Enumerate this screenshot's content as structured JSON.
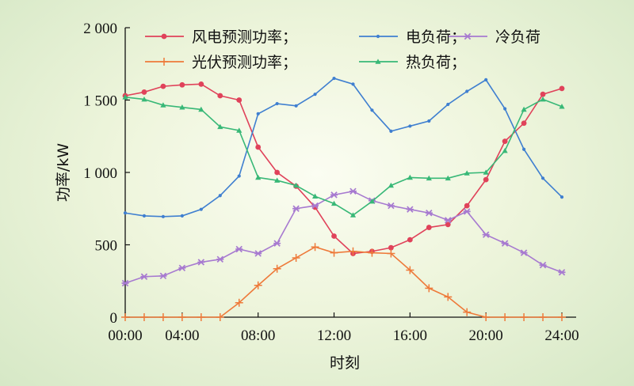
{
  "chart_data": {
    "type": "line",
    "xlabel": "时刻",
    "ylabel": "功率/kW",
    "xlim": [
      1,
      24
    ],
    "ylim": [
      0,
      2000
    ],
    "x_tick_values": [
      1,
      4,
      8,
      12,
      16,
      20,
      24
    ],
    "x_tick_labels": [
      "00:00",
      "04:00",
      "08:00",
      "12:00",
      "16:00",
      "20:00",
      "24:00"
    ],
    "y_tick_values": [
      0,
      500,
      1000,
      1500,
      2000
    ],
    "y_tick_labels": [
      "0",
      "500",
      "1 000",
      "1 500",
      "2 000"
    ],
    "grid": false,
    "legend_position": "top",
    "x": [
      1,
      2,
      3,
      4,
      5,
      6,
      7,
      8,
      9,
      10,
      11,
      12,
      13,
      14,
      15,
      16,
      17,
      18,
      19,
      20,
      21,
      22,
      23,
      24
    ],
    "series": [
      {
        "name": "风电预测功率；",
        "color": "#e0425a",
        "marker": "circle",
        "values": [
          1530,
          1555,
          1595,
          1605,
          1610,
          1530,
          1500,
          1175,
          1000,
          905,
          760,
          560,
          440,
          455,
          480,
          535,
          620,
          640,
          770,
          950,
          1215,
          1340,
          1540,
          1580
        ]
      },
      {
        "name": "电负荷；",
        "color": "#3f7fd0",
        "marker": "dot",
        "values": [
          720,
          700,
          695,
          700,
          745,
          840,
          975,
          1405,
          1475,
          1460,
          1540,
          1650,
          1610,
          1430,
          1285,
          1320,
          1355,
          1470,
          1560,
          1640,
          1440,
          1160,
          960,
          830
        ]
      },
      {
        "name": "冷负荷",
        "color": "#a77ad0",
        "marker": "x",
        "values": [
          235,
          280,
          285,
          340,
          380,
          400,
          470,
          440,
          510,
          750,
          770,
          845,
          870,
          805,
          770,
          745,
          720,
          670,
          730,
          570,
          510,
          445,
          360,
          310
        ]
      },
      {
        "name": "光伏预测功率；",
        "color": "#ee7a3a",
        "marker": "plus",
        "values": [
          0,
          0,
          0,
          0,
          0,
          0,
          100,
          220,
          335,
          410,
          485,
          445,
          455,
          445,
          440,
          325,
          200,
          140,
          35,
          0,
          0,
          0,
          0,
          0
        ]
      },
      {
        "name": "热负荷；",
        "color": "#38b877",
        "marker": "triangle",
        "values": [
          1520,
          1505,
          1465,
          1450,
          1435,
          1315,
          1290,
          965,
          945,
          910,
          835,
          785,
          705,
          800,
          910,
          965,
          960,
          960,
          995,
          1000,
          1150,
          1435,
          1505,
          1455
        ]
      }
    ]
  }
}
